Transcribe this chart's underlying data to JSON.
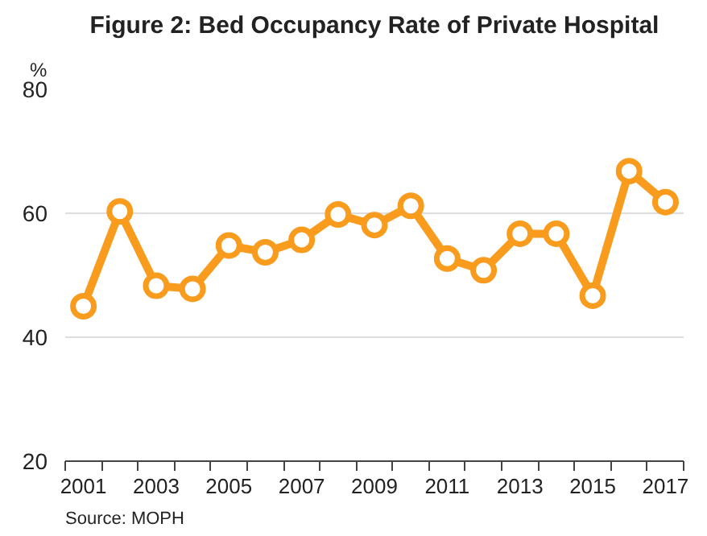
{
  "chart_data": {
    "type": "line",
    "title": "Figure 2: Bed Occupancy Rate of Private Hospital",
    "ylabel": "%",
    "categories": [
      "2001",
      null,
      "2003",
      null,
      "2005",
      null,
      "2007",
      null,
      "2009",
      null,
      "2011",
      null,
      "2013",
      null,
      "2015",
      null,
      "2017"
    ],
    "series": [
      {
        "color": "#f99b1c",
        "values": [
          45,
          60.3,
          48.3,
          47.8,
          54.8,
          53.7,
          55.7,
          59.8,
          58.1,
          61.2,
          52.7,
          50.8,
          56.7,
          56.7,
          46.7,
          66.8,
          61.8
        ]
      }
    ],
    "ylim": [
      20,
      80
    ],
    "yticks": [
      20,
      40,
      60,
      80
    ],
    "grid": "y",
    "marker": "circle",
    "line_style": "solid",
    "annotations": [
      "Source: MOPH"
    ]
  }
}
